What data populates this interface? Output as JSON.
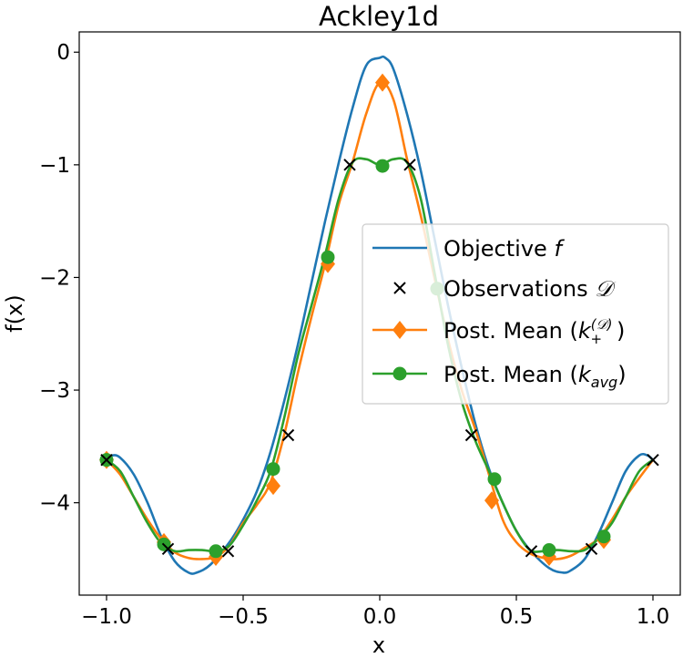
{
  "chart_data": {
    "type": "line",
    "title": "Ackley1d",
    "xlabel": "x",
    "ylabel": "f(x)",
    "xlim": [
      -1.1,
      1.1
    ],
    "ylim": [
      -4.82,
      0.18
    ],
    "x_ticks": [
      -1.0,
      -0.5,
      0.0,
      0.5,
      1.0
    ],
    "x_tick_labels": [
      "−1.0",
      "−0.5",
      "0.0",
      "0.5",
      "1.0"
    ],
    "y_ticks": [
      0,
      -1,
      -2,
      -3,
      -4
    ],
    "y_tick_labels": [
      "0",
      "−1",
      "−2",
      "−3",
      "−4"
    ],
    "legend_position": "center-right",
    "series": [
      {
        "name": "Objective f",
        "legend_main": "Objective ",
        "legend_math": "f",
        "color": "#1f77b4",
        "kind": "line",
        "x": [
          -1.0,
          -0.98,
          -0.95,
          -0.9,
          -0.85,
          -0.8,
          -0.75,
          -0.7,
          -0.67,
          -0.62,
          -0.55,
          -0.5,
          -0.45,
          -0.4,
          -0.35,
          -0.3,
          -0.25,
          -0.2,
          -0.15,
          -0.1,
          -0.05,
          0.0,
          0.02,
          0.05,
          0.1,
          0.15,
          0.2,
          0.25,
          0.3,
          0.35,
          0.4,
          0.45,
          0.5,
          0.55,
          0.62,
          0.67,
          0.7,
          0.75,
          0.8,
          0.85,
          0.9,
          0.95,
          0.98,
          1.0
        ],
        "y": [
          -3.62,
          -3.58,
          -3.6,
          -3.75,
          -4.0,
          -4.3,
          -4.52,
          -4.62,
          -4.62,
          -4.55,
          -4.35,
          -4.15,
          -3.9,
          -3.55,
          -3.1,
          -2.6,
          -2.05,
          -1.5,
          -0.98,
          -0.5,
          -0.12,
          -0.05,
          -0.05,
          -0.15,
          -0.55,
          -1.05,
          -1.65,
          -2.25,
          -2.8,
          -3.3,
          -3.7,
          -4.0,
          -4.25,
          -4.42,
          -4.58,
          -4.62,
          -4.6,
          -4.5,
          -4.28,
          -4.0,
          -3.72,
          -3.58,
          -3.58,
          -3.62
        ]
      },
      {
        "name": "Observations D",
        "legend_main": "Observations ",
        "legend_math": "𝒟",
        "color": "#000000",
        "kind": "marker-x",
        "x": [
          -1.0,
          -0.775,
          -0.555,
          -0.335,
          -0.11,
          0.11,
          0.335,
          0.555,
          0.775,
          1.0
        ],
        "y": [
          -3.62,
          -4.41,
          -4.43,
          -3.4,
          -1.0,
          -1.0,
          -3.4,
          -4.43,
          -4.41,
          -3.62
        ]
      },
      {
        "name": "Post. Mean (k_+^(D))",
        "legend_main": "Post. Mean (",
        "legend_math": "k",
        "legend_sub": "+",
        "legend_sup": "(𝒟)",
        "legend_end": ")",
        "color": "#ff7f0e",
        "kind": "line-diamond",
        "x": [
          -1.0,
          -0.95,
          -0.9,
          -0.85,
          -0.8,
          -0.75,
          -0.7,
          -0.65,
          -0.6,
          -0.55,
          -0.5,
          -0.45,
          -0.4,
          -0.35,
          -0.3,
          -0.25,
          -0.2,
          -0.15,
          -0.1,
          -0.05,
          0.0,
          0.05,
          0.1,
          0.15,
          0.2,
          0.25,
          0.3,
          0.35,
          0.4,
          0.45,
          0.5,
          0.55,
          0.6,
          0.65,
          0.7,
          0.75,
          0.8,
          0.85,
          0.9,
          0.95,
          1.0
        ],
        "y": [
          -3.62,
          -3.75,
          -3.95,
          -4.15,
          -4.32,
          -4.44,
          -4.49,
          -4.5,
          -4.48,
          -4.38,
          -4.18,
          -4.02,
          -3.82,
          -3.4,
          -2.85,
          -2.35,
          -1.88,
          -1.35,
          -0.98,
          -0.55,
          -0.27,
          -0.42,
          -0.95,
          -1.45,
          -2.0,
          -2.55,
          -3.0,
          -3.35,
          -3.75,
          -4.15,
          -4.35,
          -4.45,
          -4.49,
          -4.5,
          -4.47,
          -4.4,
          -4.32,
          -4.15,
          -3.95,
          -3.78,
          -3.62
        ],
        "markers_x": [
          -1.0,
          -0.79,
          -0.6,
          -0.39,
          -0.19,
          0.01,
          0.41,
          0.62,
          0.82
        ],
        "markers_y": [
          -3.62,
          -4.35,
          -4.48,
          -3.85,
          -1.88,
          -0.27,
          -3.98,
          -4.48,
          -4.33
        ]
      },
      {
        "name": "Post. Mean (k_avg)",
        "legend_main": "Post. Mean (",
        "legend_math": "k",
        "legend_sub": "avg",
        "legend_end": ")",
        "color": "#2ca02c",
        "kind": "line-circle",
        "x": [
          -1.0,
          -0.95,
          -0.9,
          -0.85,
          -0.8,
          -0.75,
          -0.7,
          -0.65,
          -0.6,
          -0.55,
          -0.5,
          -0.45,
          -0.4,
          -0.35,
          -0.3,
          -0.25,
          -0.2,
          -0.15,
          -0.1,
          -0.05,
          0.0,
          0.05,
          0.1,
          0.15,
          0.2,
          0.25,
          0.3,
          0.35,
          0.4,
          0.45,
          0.5,
          0.55,
          0.6,
          0.65,
          0.7,
          0.75,
          0.8,
          0.85,
          0.9,
          0.95,
          1.0
        ],
        "y": [
          -3.62,
          -3.72,
          -3.95,
          -4.18,
          -4.36,
          -4.43,
          -4.42,
          -4.42,
          -4.43,
          -4.38,
          -4.2,
          -3.98,
          -3.72,
          -3.25,
          -2.7,
          -2.25,
          -1.8,
          -1.3,
          -0.98,
          -0.95,
          -1.0,
          -0.95,
          -0.98,
          -1.3,
          -1.95,
          -2.6,
          -3.1,
          -3.45,
          -3.72,
          -4.0,
          -4.25,
          -4.42,
          -4.43,
          -4.42,
          -4.43,
          -4.42,
          -4.32,
          -4.18,
          -3.95,
          -3.72,
          -3.62
        ],
        "markers_x": [
          -1.0,
          -0.79,
          -0.6,
          -0.39,
          -0.19,
          0.01,
          0.21,
          0.42,
          0.62,
          0.82
        ],
        "markers_y": [
          -3.62,
          -4.37,
          -4.43,
          -3.7,
          -1.82,
          -1.01,
          -2.1,
          -3.79,
          -4.42,
          -4.3
        ]
      }
    ]
  }
}
